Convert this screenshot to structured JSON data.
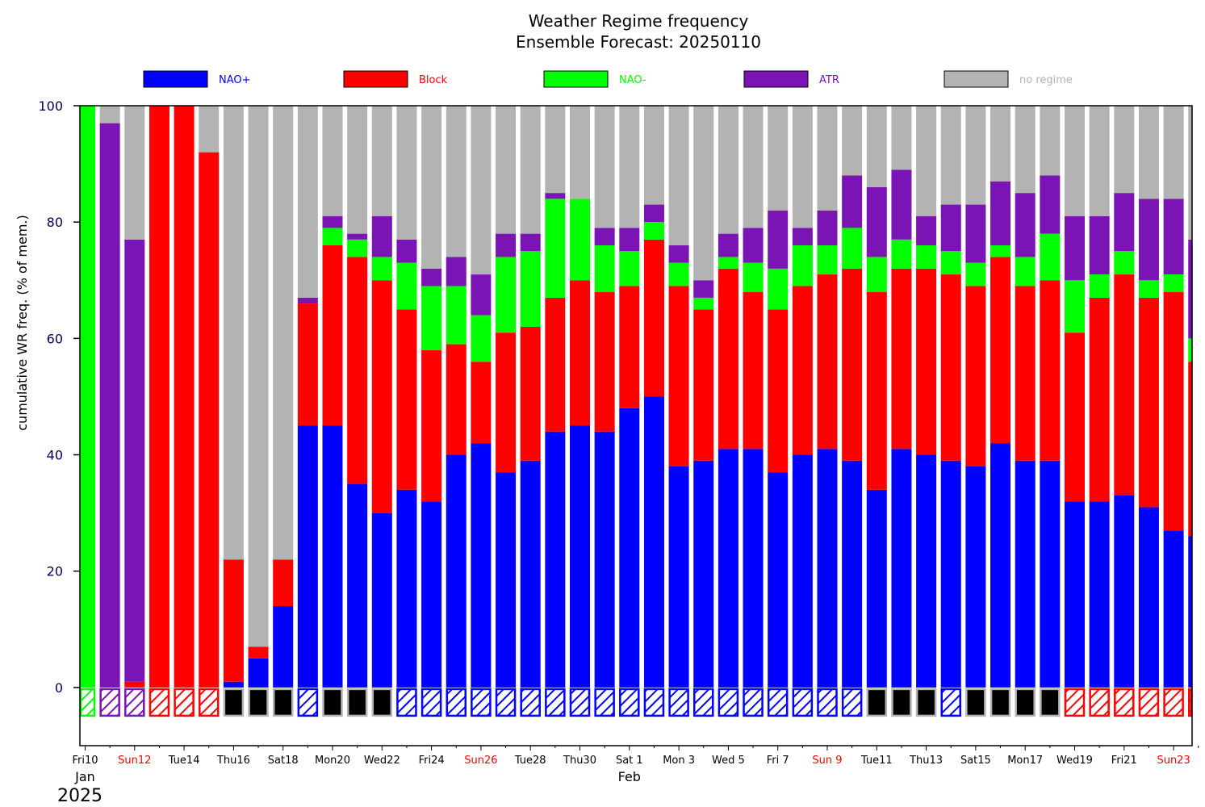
{
  "chart_data": {
    "type": "bar",
    "title": "Weather Regime frequency",
    "subtitle": "Ensemble Forecast: 20250110",
    "ylabel": "cumulative WR freq. (% of mem.)",
    "ylim": [
      -10,
      100
    ],
    "yticks": [
      0,
      20,
      40,
      60,
      80,
      100
    ],
    "stacked": true,
    "legend_placement": "top",
    "series": [
      {
        "name": "NAO+",
        "color": "#0000ff",
        "values": [
          0,
          0,
          0,
          0,
          0,
          0,
          1,
          5,
          14,
          45,
          45,
          35,
          30,
          34,
          32,
          40,
          42,
          37,
          39,
          44,
          45,
          44,
          48,
          50,
          38,
          39,
          41,
          41,
          37,
          40,
          41,
          39,
          34,
          41,
          40,
          39,
          38,
          42,
          39,
          39,
          32,
          32,
          33,
          31,
          27,
          26
        ]
      },
      {
        "name": "Block",
        "color": "#ff0000",
        "values": [
          0,
          0,
          1,
          100,
          100,
          92,
          21,
          2,
          8,
          21,
          31,
          39,
          40,
          31,
          26,
          19,
          14,
          24,
          23,
          23,
          25,
          24,
          21,
          27,
          31,
          26,
          31,
          27,
          28,
          29,
          30,
          33,
          34,
          31,
          32,
          32,
          31,
          32,
          30,
          31,
          29,
          35,
          38,
          36,
          41,
          30
        ]
      },
      {
        "name": "NAO-",
        "color": "#00ff00",
        "values": [
          100,
          0,
          0,
          0,
          0,
          0,
          0,
          0,
          0,
          0,
          3,
          3,
          4,
          8,
          11,
          10,
          8,
          13,
          13,
          17,
          14,
          8,
          6,
          3,
          4,
          2,
          2,
          5,
          7,
          7,
          5,
          7,
          6,
          5,
          4,
          4,
          4,
          2,
          5,
          8,
          9,
          4,
          4,
          3,
          3,
          4
        ]
      },
      {
        "name": "ATR",
        "color": "#7b14b4",
        "values": [
          0,
          97,
          76,
          0,
          0,
          0,
          0,
          0,
          0,
          1,
          2,
          1,
          7,
          4,
          3,
          5,
          7,
          4,
          3,
          1,
          0,
          3,
          4,
          3,
          3,
          3,
          4,
          6,
          10,
          3,
          6,
          9,
          12,
          12,
          5,
          8,
          10,
          11,
          11,
          10,
          11,
          10,
          10,
          14,
          13,
          17
        ]
      },
      {
        "name": "no regime",
        "color": "#b3b3b3",
        "values": [
          0,
          3,
          23,
          0,
          0,
          8,
          78,
          93,
          78,
          33,
          19,
          22,
          19,
          23,
          28,
          26,
          29,
          22,
          22,
          15,
          16,
          21,
          21,
          17,
          24,
          30,
          22,
          21,
          18,
          21,
          18,
          12,
          14,
          11,
          19,
          17,
          17,
          13,
          15,
          12,
          19,
          19,
          15,
          16,
          16,
          23
        ]
      }
    ],
    "dominant_regime": [
      "NAO-",
      "ATR",
      "ATR",
      "Block",
      "Block",
      "Block",
      "no regime",
      "no regime",
      "no regime",
      "NAO+",
      "no regime",
      "no regime",
      "no regime",
      "NAO+",
      "NAO+",
      "NAO+",
      "NAO+",
      "NAO+",
      "NAO+",
      "NAO+",
      "NAO+",
      "NAO+",
      "NAO+",
      "NAO+",
      "NAO+",
      "NAO+",
      "NAO+",
      "NAO+",
      "NAO+",
      "NAO+",
      "NAO+",
      "NAO+",
      "no regime",
      "no regime",
      "no regime",
      "NAO+",
      "no regime",
      "no regime",
      "no regime",
      "no regime",
      "Block",
      "Block",
      "Block",
      "Block",
      "Block",
      "Block"
    ],
    "x_tick_labels": [
      {
        "day": 0,
        "label": "Fri10",
        "color": "#000000"
      },
      {
        "day": 2,
        "label": "Sun12",
        "color": "#ff0000"
      },
      {
        "day": 4,
        "label": "Tue14",
        "color": "#000000"
      },
      {
        "day": 6,
        "label": "Thu16",
        "color": "#000000"
      },
      {
        "day": 8,
        "label": "Sat18",
        "color": "#000000"
      },
      {
        "day": 10,
        "label": "Mon20",
        "color": "#000000"
      },
      {
        "day": 12,
        "label": "Wed22",
        "color": "#000000"
      },
      {
        "day": 14,
        "label": "Fri24",
        "color": "#000000"
      },
      {
        "day": 16,
        "label": "Sun26",
        "color": "#ff0000"
      },
      {
        "day": 18,
        "label": "Tue28",
        "color": "#000000"
      },
      {
        "day": 20,
        "label": "Thu30",
        "color": "#000000"
      },
      {
        "day": 22,
        "label": "Sat 1",
        "color": "#000000"
      },
      {
        "day": 24,
        "label": "Mon 3",
        "color": "#000000"
      },
      {
        "day": 26,
        "label": "Wed 5",
        "color": "#000000"
      },
      {
        "day": 28,
        "label": "Fri 7",
        "color": "#000000"
      },
      {
        "day": 30,
        "label": "Sun 9",
        "color": "#ff0000"
      },
      {
        "day": 32,
        "label": "Tue11",
        "color": "#000000"
      },
      {
        "day": 34,
        "label": "Thu13",
        "color": "#000000"
      },
      {
        "day": 36,
        "label": "Sat15",
        "color": "#000000"
      },
      {
        "day": 38,
        "label": "Mon17",
        "color": "#000000"
      },
      {
        "day": 40,
        "label": "Wed19",
        "color": "#000000"
      },
      {
        "day": 42,
        "label": "Fri21",
        "color": "#000000"
      },
      {
        "day": 44,
        "label": "Sun23",
        "color": "#ff0000"
      }
    ],
    "month_labels": [
      {
        "day": 0,
        "label": "Jan"
      },
      {
        "day": 22,
        "label": "Feb"
      }
    ],
    "year_label": "2025"
  }
}
